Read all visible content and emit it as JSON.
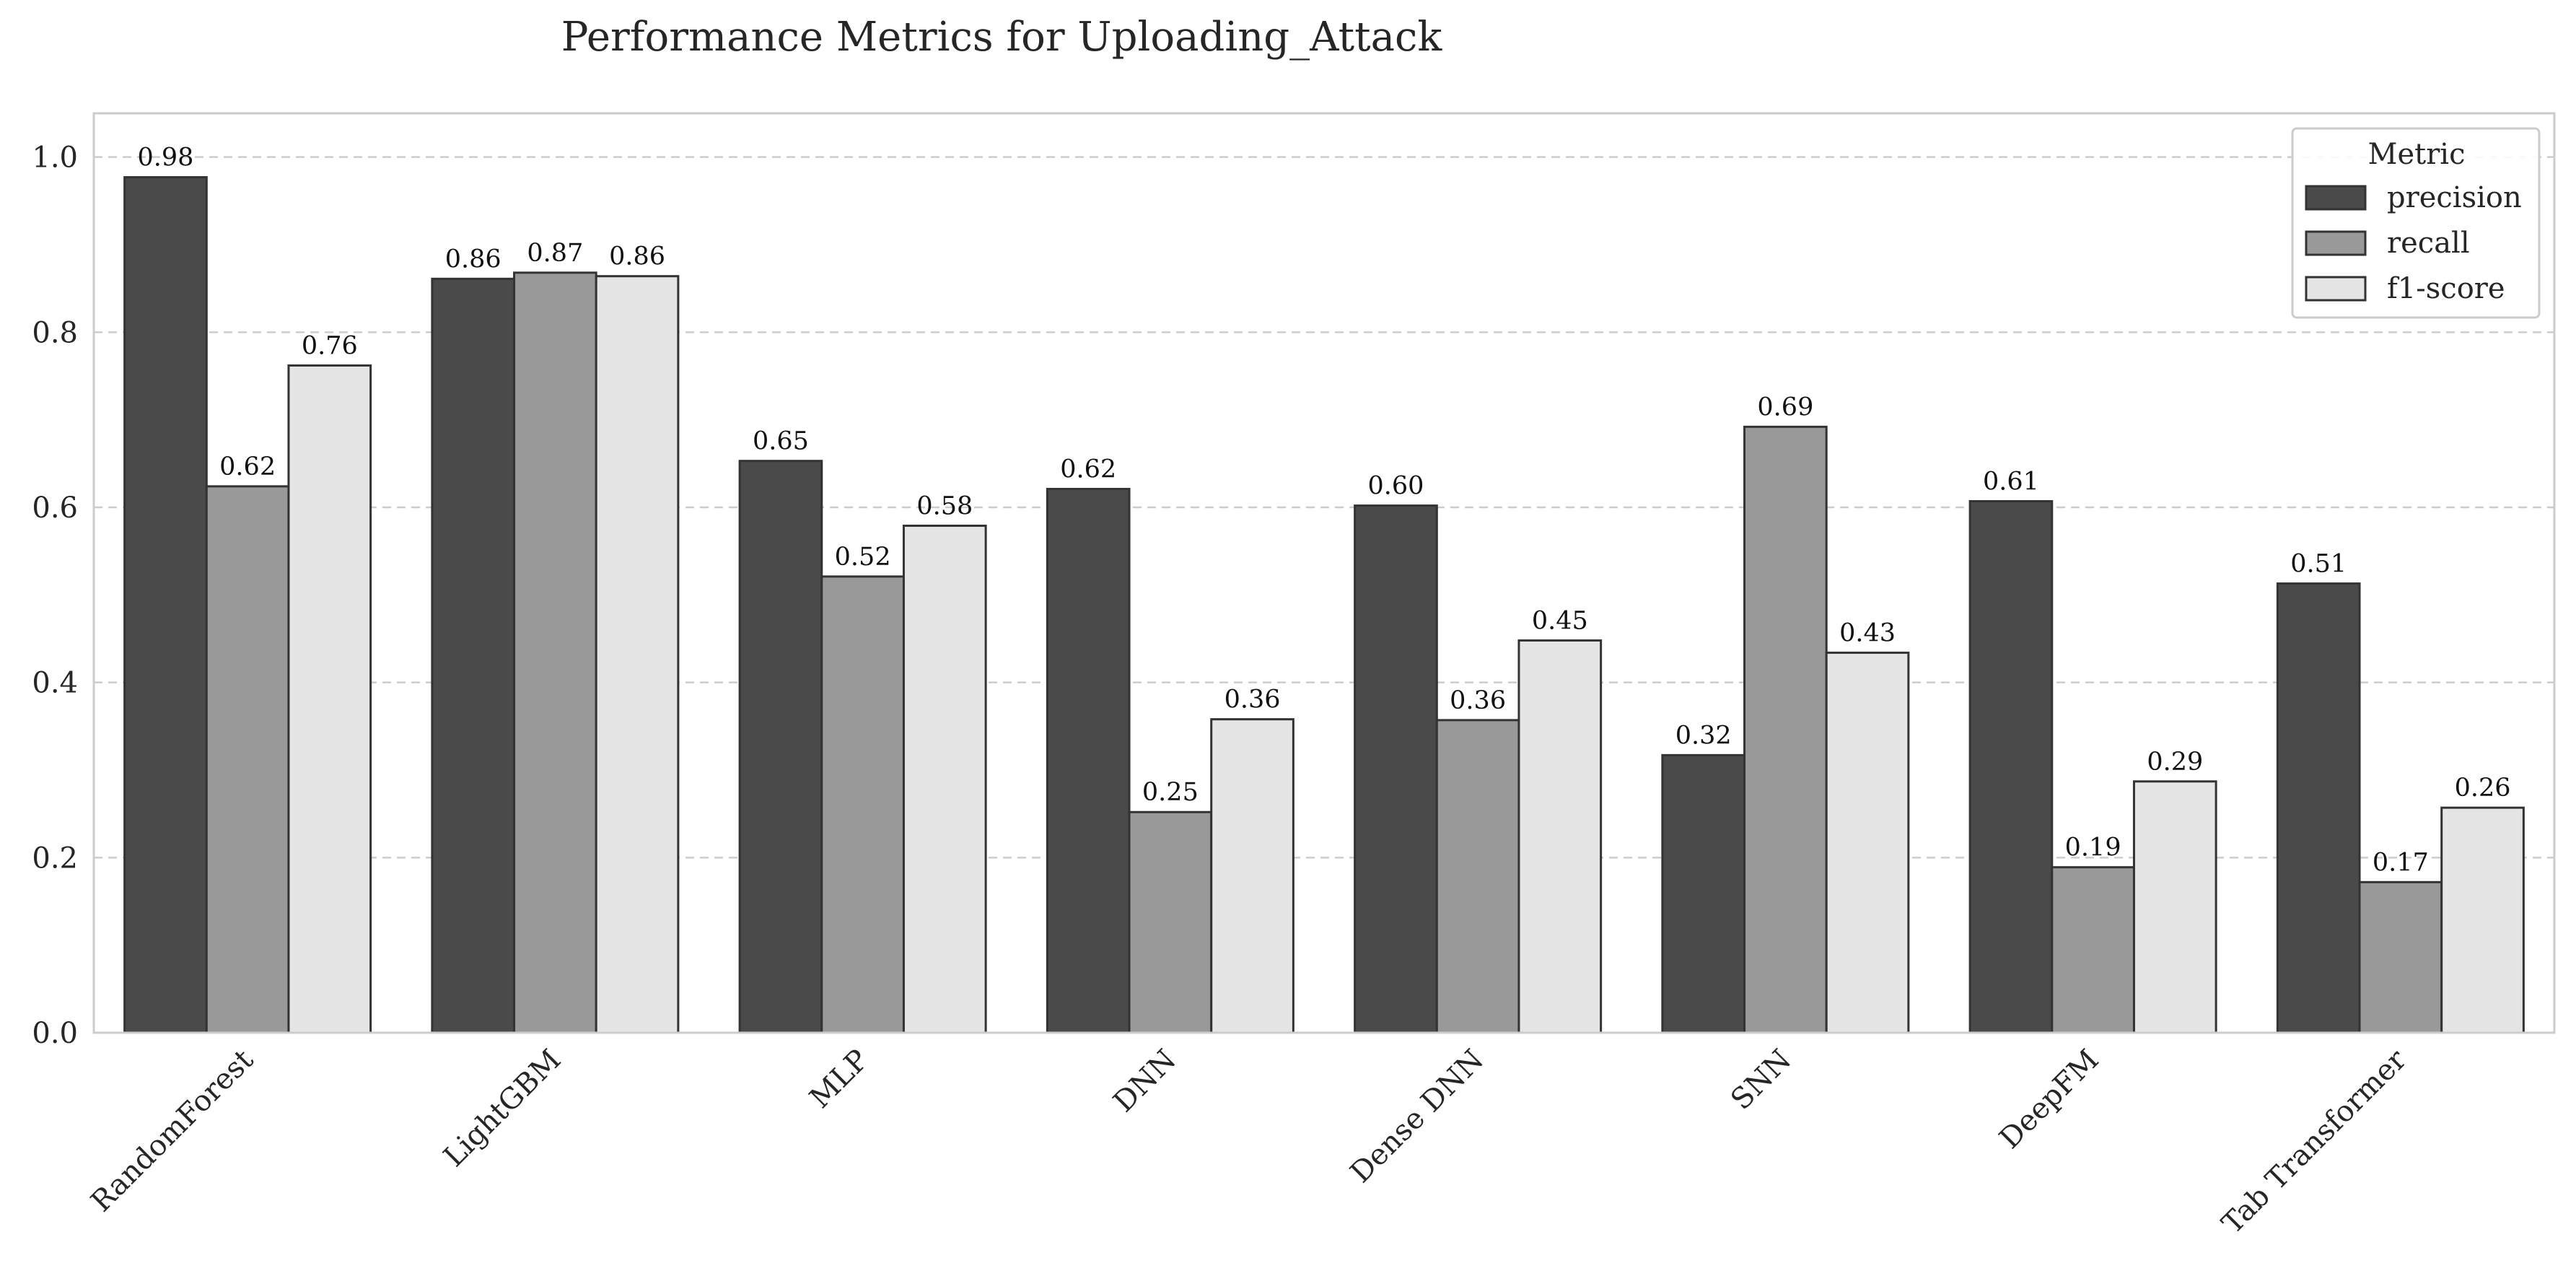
{
  "chart_data": {
    "type": "bar",
    "title": "Performance Metrics for Uploading_Attack",
    "xlabel": "",
    "ylabel": "",
    "categories": [
      "RandomForest",
      "LightGBM",
      "MLP",
      "DNN",
      "Dense DNN",
      "SNN",
      "DeepFM",
      "Tab Transformer"
    ],
    "series": [
      {
        "name": "precision",
        "color": "#4a4a4a",
        "values": [
          0.977,
          0.861,
          0.653,
          0.621,
          0.602,
          0.317,
          0.607,
          0.513
        ]
      },
      {
        "name": "recall",
        "color": "#999999",
        "values": [
          0.624,
          0.868,
          0.521,
          0.252,
          0.357,
          0.692,
          0.189,
          0.172
        ]
      },
      {
        "name": "f1-score",
        "color": "#e5e5e5",
        "values": [
          0.762,
          0.864,
          0.579,
          0.358,
          0.448,
          0.434,
          0.287,
          0.257
        ]
      }
    ],
    "data_labels": [
      [
        "0.98",
        "0.86",
        "0.65",
        "0.62",
        "0.60",
        "0.32",
        "0.61",
        "0.51"
      ],
      [
        "0.62",
        "0.87",
        "0.52",
        "0.25",
        "0.36",
        "0.69",
        "0.19",
        "0.17"
      ],
      [
        "0.76",
        "0.86",
        "0.58",
        "0.36",
        "0.45",
        "0.43",
        "0.29",
        "0.26"
      ]
    ],
    "ylim": [
      0,
      1.05
    ],
    "yticks": [
      "0.0",
      "0.2",
      "0.4",
      "0.6",
      "0.8",
      "1.0"
    ],
    "ytick_values": [
      0,
      0.2,
      0.4,
      0.6,
      0.8,
      1.0
    ],
    "grid": "y-dashed",
    "legend": {
      "title": "Metric",
      "placement": "top-right"
    }
  }
}
